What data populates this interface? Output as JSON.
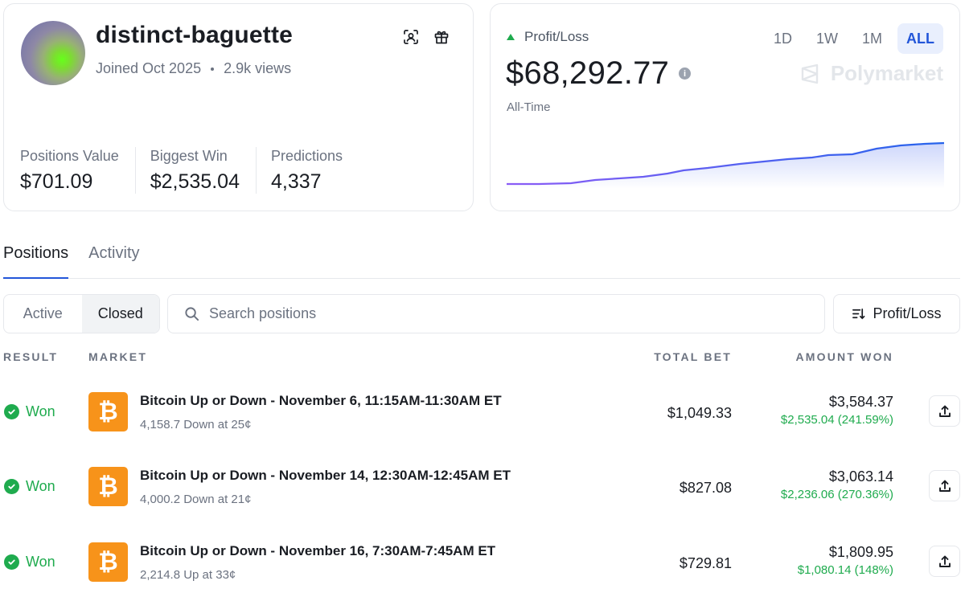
{
  "profile": {
    "username": "distinct-baguette",
    "joined": "Joined Oct 2025",
    "views": "2.9k views",
    "stats": [
      {
        "label": "Positions Value",
        "value": "$701.09"
      },
      {
        "label": "Biggest Win",
        "value": "$2,535.04"
      },
      {
        "label": "Predictions",
        "value": "4,337"
      }
    ],
    "icons": {
      "scan": "scan-icon",
      "gift": "gift-icon"
    }
  },
  "pnl": {
    "label": "Profit/Loss",
    "value": "$68,292.77",
    "period": "All-Time",
    "ranges": [
      "1D",
      "1W",
      "1M",
      "ALL"
    ],
    "active_range": "ALL",
    "brand": "Polymarket",
    "trend_color_start": "#8b5cf6",
    "trend_color_end": "#2563eb"
  },
  "tabs": {
    "positions": "Positions",
    "activity": "Activity"
  },
  "filters": {
    "active": "Active",
    "closed": "Closed",
    "search_placeholder": "Search positions",
    "sort": "Profit/Loss"
  },
  "table": {
    "headers": {
      "result": "RESULT",
      "market": "MARKET",
      "total_bet": "TOTAL BET",
      "amount_won": "AMOUNT WON"
    },
    "rows": [
      {
        "result": "Won",
        "title": "Bitcoin Up or Down - November 6, 11:15AM-11:30AM ET",
        "sub": "4,158.7 Down at 25¢",
        "total": "$1,049.33",
        "won": "$3,584.37",
        "pl": "$2,535.04 (241.59%)"
      },
      {
        "result": "Won",
        "title": "Bitcoin Up or Down - November 14, 12:30AM-12:45AM ET",
        "sub": "4,000.2 Down at 21¢",
        "total": "$827.08",
        "won": "$3,063.14",
        "pl": "$2,236.06 (270.36%)"
      },
      {
        "result": "Won",
        "title": "Bitcoin Up or Down - November 16, 7:30AM-7:45AM ET",
        "sub": "2,214.8 Up at 33¢",
        "total": "$729.81",
        "won": "$1,809.95",
        "pl": "$1,080.14 (148%)"
      }
    ]
  },
  "colors": {
    "accent": "#2356d9",
    "positive": "#1fab4e",
    "bitcoin": "#f7931a"
  }
}
